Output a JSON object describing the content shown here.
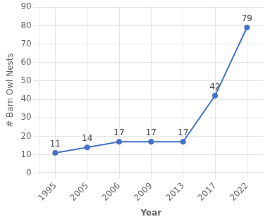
{
  "chart_data": {
    "type": "line",
    "x_label": "Year",
    "y_label": "# Barn Owl Nests",
    "categories": [
      "1995",
      "2005",
      "2006",
      "2009",
      "2013",
      "2017",
      "2022"
    ],
    "values": [
      11,
      14,
      17,
      17,
      17,
      42,
      79
    ],
    "color": "#4472c4",
    "ylim": [
      0,
      90
    ],
    "yticks": [
      0,
      10,
      20,
      30,
      40,
      50,
      60,
      70,
      80,
      90
    ],
    "grid": true,
    "data_labels": true
  }
}
